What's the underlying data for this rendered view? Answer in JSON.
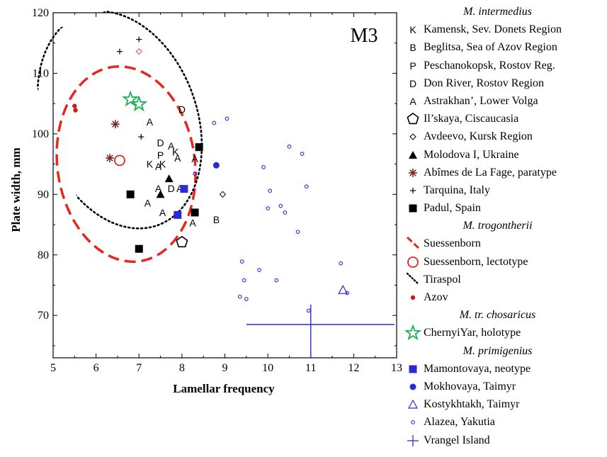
{
  "chart_data": {
    "type": "scatter",
    "panel_label": "M3",
    "xlabel": "Lamellar frequency",
    "ylabel": "Plate width, mm",
    "xlim": [
      5,
      13
    ],
    "ylim": [
      63,
      120
    ],
    "xticks": [
      "5",
      "6",
      "7",
      "8",
      "9",
      "10",
      "11",
      "12",
      "13"
    ],
    "yticks": [
      "70",
      "80",
      "90",
      "100",
      "110",
      "120"
    ],
    "ytick_values": [
      70,
      80,
      90,
      100,
      110,
      120
    ],
    "xtick_values": [
      5,
      6,
      7,
      8,
      9,
      10,
      11,
      12,
      13
    ],
    "legend": [
      {
        "kind": "header",
        "label": "M. intermedius"
      },
      {
        "kind": "item",
        "symbol": "K",
        "label": "Kamensk, Sev. Donets Region"
      },
      {
        "kind": "item",
        "symbol": "B",
        "label": "Beglitsa, Sea of Azov Region"
      },
      {
        "kind": "item",
        "symbol": "P",
        "label": "Peschanokopsk, Rostov Reg."
      },
      {
        "kind": "item",
        "symbol": "D",
        "label": "Don River, Rostov Region"
      },
      {
        "kind": "item",
        "symbol": "A",
        "label": "Astrakhan’, Lower Volga"
      },
      {
        "kind": "item",
        "symbol": "pentagon",
        "label": "Il’skaya, Ciscaucasia"
      },
      {
        "kind": "item",
        "symbol": "diamond",
        "label": "Avdeevo, Kursk Region"
      },
      {
        "kind": "item",
        "symbol": "triangle-filled",
        "label": "Molodova I, Ukraine"
      },
      {
        "kind": "item",
        "symbol": "asterisk",
        "label": "Abîmes de La Fage, paratype"
      },
      {
        "kind": "item",
        "symbol": "plus-small",
        "label": "Tarquina, Italy"
      },
      {
        "kind": "item",
        "symbol": "square-filled",
        "label": "Padul, Spain"
      },
      {
        "kind": "header",
        "label": "M. trogontherii"
      },
      {
        "kind": "item",
        "symbol": "dash-line",
        "label": "Suessenborn"
      },
      {
        "kind": "item",
        "symbol": "circle-open-red",
        "label": "Suessenborn, lectotype"
      },
      {
        "kind": "item",
        "symbol": "dot-line",
        "label": "Tiraspol"
      },
      {
        "kind": "item",
        "symbol": "dot-red",
        "label": "Azov"
      },
      {
        "kind": "header",
        "label": "M. tr. chosaricus"
      },
      {
        "kind": "item",
        "symbol": "star-green",
        "label": "ChernyiYar, holotype"
      },
      {
        "kind": "header",
        "label": "M. primigenius"
      },
      {
        "kind": "item",
        "symbol": "square-blue",
        "label": "Mamontovaya, neotype"
      },
      {
        "kind": "item",
        "symbol": "circle-blue",
        "label": "Mokhovaya, Taimyr"
      },
      {
        "kind": "item",
        "symbol": "triangle-blue-open",
        "label": "Kostykhtakh, Taimyr"
      },
      {
        "kind": "item",
        "symbol": "circle-blue-small",
        "label": "Alazea, Yakutia"
      },
      {
        "kind": "item",
        "symbol": "cross-blue",
        "label": "Vrangel Island"
      }
    ],
    "colors": {
      "red": "#e8251f",
      "blue": "#2b2bd6",
      "green": "#1fae55",
      "brown": "#7a2a2a",
      "black": "#000000",
      "pink": "#f06060"
    },
    "series": [
      {
        "name": "Kamensk, Sev. Donets Region",
        "marker": "K",
        "points": [
          [
            7.25,
            95.0
          ],
          [
            7.55,
            95.0
          ],
          [
            7.85,
            97.0
          ]
        ]
      },
      {
        "name": "Beglitsa, Sea of Azov Region",
        "marker": "B",
        "points": [
          [
            8.8,
            85.8
          ]
        ]
      },
      {
        "name": "Peschanokopsk, Rostov Reg.",
        "marker": "P",
        "points": [
          [
            7.5,
            96.5
          ]
        ]
      },
      {
        "name": "Don River, Rostov Region",
        "marker": "D",
        "points": [
          [
            8.0,
            104.0
          ],
          [
            7.5,
            98.5
          ],
          [
            7.75,
            91.0
          ]
        ]
      },
      {
        "name": "Astrakhan’, Lower Volga",
        "marker": "A",
        "points": [
          [
            7.25,
            102.0
          ],
          [
            7.75,
            98.0
          ],
          [
            7.45,
            94.6
          ],
          [
            7.9,
            96.0
          ],
          [
            8.3,
            95.9
          ],
          [
            7.45,
            91.0
          ],
          [
            7.95,
            91.0
          ],
          [
            7.2,
            88.6
          ],
          [
            7.55,
            87.0
          ],
          [
            8.25,
            85.3
          ]
        ]
      },
      {
        "name": "Il’skaya, Ciscaucasia",
        "marker": "pentagon",
        "points": [
          [
            8.0,
            82.1
          ]
        ]
      },
      {
        "name": "Avdeevo, Kursk Region",
        "marker": "diamond",
        "points": [
          [
            8.95,
            90.0
          ]
        ]
      },
      {
        "name": "Molodova I, Ukraine",
        "marker": "triangle-filled",
        "points": [
          [
            7.7,
            92.6
          ],
          [
            7.5,
            90.0
          ]
        ]
      },
      {
        "name": "Abîmes de La Fage, paratype",
        "marker": "asterisk",
        "points": [
          [
            6.45,
            101.6
          ],
          [
            6.32,
            96.0
          ]
        ]
      },
      {
        "name": "Tarquina, Italy",
        "marker": "plus-small",
        "points": [
          [
            7.0,
            115.6
          ],
          [
            6.55,
            113.6
          ],
          [
            7.05,
            99.5
          ]
        ]
      },
      {
        "name": "Padul, Spain",
        "marker": "square-filled",
        "points": [
          [
            6.8,
            90.0
          ],
          [
            8.4,
            97.8
          ],
          [
            8.3,
            87.0
          ],
          [
            7.0,
            81.0
          ]
        ]
      },
      {
        "name": "Tarquina pink diamond",
        "marker": "diamond-pink",
        "points": [
          [
            7.0,
            113.6
          ]
        ]
      },
      {
        "name": "Suessenborn, lectotype",
        "marker": "circle-open-red",
        "points": [
          [
            6.55,
            95.6
          ]
        ]
      },
      {
        "name": "Azov",
        "marker": "dot-red",
        "points": [
          [
            5.5,
            104.6
          ],
          [
            5.52,
            103.9
          ]
        ]
      },
      {
        "name": "ChernyiYar, holotype",
        "marker": "star-green",
        "points": [
          [
            6.8,
            105.7
          ],
          [
            7.0,
            104.9
          ]
        ]
      },
      {
        "name": "Mamontovaya, neotype",
        "marker": "square-blue",
        "points": [
          [
            7.9,
            86.6
          ],
          [
            8.05,
            90.9
          ]
        ]
      },
      {
        "name": "Mokhovaya, Taimyr",
        "marker": "circle-blue",
        "points": [
          [
            8.8,
            94.8
          ]
        ]
      },
      {
        "name": "Kostykhtakh, Taimyr",
        "marker": "triangle-blue-open",
        "points": [
          [
            11.75,
            74.2
          ]
        ]
      },
      {
        "name": "Alazea, Yakutia",
        "marker": "circle-blue-small",
        "points": [
          [
            8.75,
            101.8
          ],
          [
            9.05,
            102.5
          ],
          [
            9.9,
            94.5
          ],
          [
            10.5,
            97.9
          ],
          [
            10.8,
            96.7
          ],
          [
            10.05,
            90.6
          ],
          [
            10.9,
            91.3
          ],
          [
            10.0,
            87.7
          ],
          [
            10.3,
            88.1
          ],
          [
            10.4,
            87.0
          ],
          [
            10.7,
            83.8
          ],
          [
            8.3,
            93.4
          ],
          [
            9.4,
            78.9
          ],
          [
            9.8,
            77.5
          ],
          [
            11.7,
            78.6
          ],
          [
            9.45,
            75.8
          ],
          [
            10.2,
            75.8
          ],
          [
            9.35,
            73.1
          ],
          [
            9.5,
            72.7
          ],
          [
            10.95,
            70.8
          ],
          [
            11.85,
            73.7
          ]
        ]
      },
      {
        "name": "Vrangel Island",
        "marker": "cross-blue",
        "center": [
          11.0,
          68.5
        ],
        "xerr": [
          9.5,
          12.95
        ],
        "yerr": [
          61.5,
          71.8
        ]
      }
    ],
    "ellipses": [
      {
        "name": "Suessenborn",
        "style": "dashed-red",
        "cx": 6.7,
        "cy": 95.0,
        "rx": 1.6,
        "ry": 16.2,
        "rotation_deg": -8
      },
      {
        "name": "Tiraspol",
        "style": "dotted-black",
        "cx": 6.55,
        "cy": 102.3,
        "rx": 1.8,
        "ry": 18.5,
        "rotation_deg": -20
      }
    ]
  }
}
